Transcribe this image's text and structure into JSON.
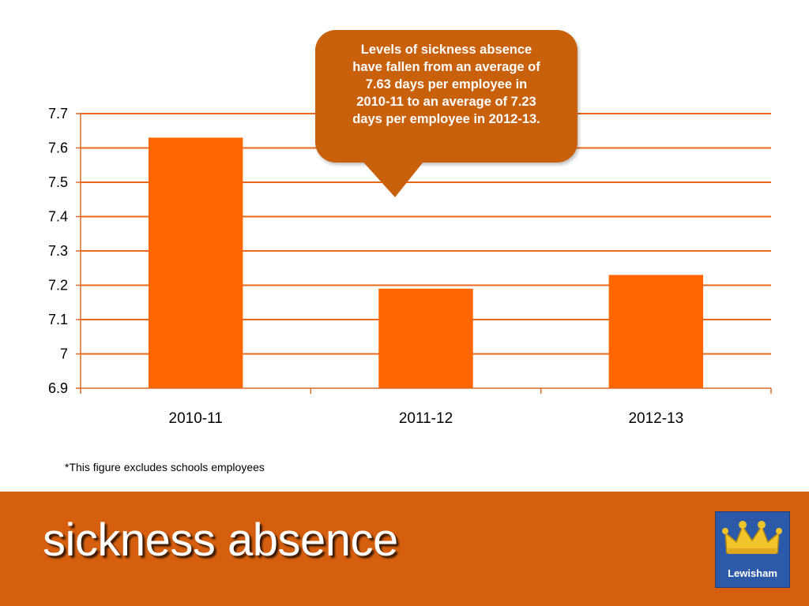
{
  "chart_data": {
    "type": "bar",
    "categories": [
      "2010-11",
      "2011-12",
      "2012-13"
    ],
    "values": [
      7.63,
      7.19,
      7.23
    ],
    "ylim": [
      6.9,
      7.7
    ],
    "yticks": [
      "6.9",
      "7",
      "7.1",
      "7.2",
      "7.3",
      "7.4",
      "7.5",
      "7.6",
      "7.7"
    ],
    "grid": true,
    "colors": {
      "bar": "#ff6600",
      "grid": "#e8681a",
      "axis": "#d86a2a"
    }
  },
  "callout": {
    "text": "Levels of sickness absence\nhave fallen from an average of\n7.63 days per employee  in\n2010-11 to an average of  7.23\ndays per employee in 2012-13."
  },
  "footnote": "*This figure excludes schools employees",
  "footer": {
    "title": "sickness absence",
    "logo_text": "Lewisham",
    "color": "#d55f0e"
  }
}
